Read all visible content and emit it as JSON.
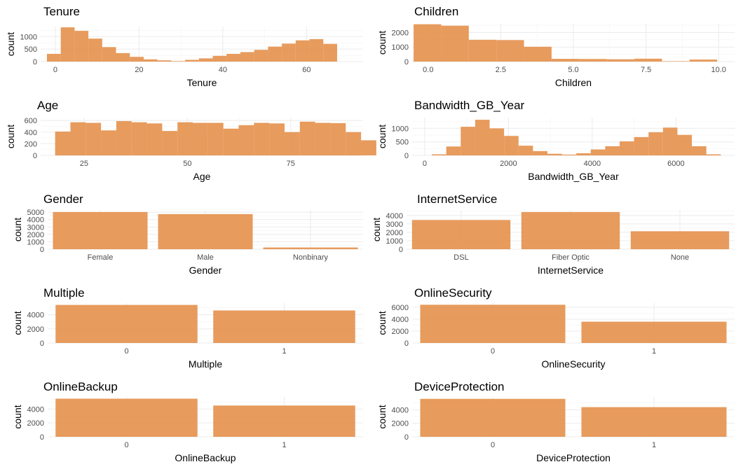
{
  "chart_data": [
    {
      "id": "tenure",
      "type": "bar",
      "histogram": true,
      "title": "Tenure",
      "xlabel": "Tenure",
      "ylabel": "count",
      "xlim": [
        -3.5,
        73.5
      ],
      "ylim": [
        0,
        1400
      ],
      "xticks": [
        0,
        20,
        40,
        60
      ],
      "xtick_labels": [
        "0",
        "20",
        "40",
        "60"
      ],
      "yticks": [
        0,
        500,
        1000
      ],
      "ytick_labels": [
        "0",
        "500",
        "1000"
      ],
      "bin_start": -2,
      "bin_width": 3.3,
      "values": [
        310,
        1370,
        1230,
        920,
        580,
        340,
        190,
        90,
        50,
        20,
        70,
        130,
        230,
        310,
        380,
        470,
        600,
        720,
        850,
        900,
        710
      ]
    },
    {
      "id": "children",
      "type": "bar",
      "histogram": true,
      "title": "Children",
      "xlabel": "Children",
      "ylabel": "count",
      "xlim": [
        -0.55,
        10.55
      ],
      "ylim": [
        0,
        2600
      ],
      "xticks": [
        0,
        2.5,
        5,
        7.5,
        10
      ],
      "xtick_labels": [
        "0.0",
        "2.5",
        "5.0",
        "7.5",
        "10.0"
      ],
      "yticks": [
        0,
        1000,
        2000
      ],
      "ytick_labels": [
        "0",
        "1000",
        "2000"
      ],
      "bin_start": -0.5,
      "bin_width": 0.95,
      "values": [
        2570,
        2470,
        1500,
        1480,
        1020,
        190,
        180,
        160,
        200,
        30,
        140
      ]
    },
    {
      "id": "age",
      "type": "bar",
      "histogram": true,
      "title": "Age",
      "xlabel": "Age",
      "ylabel": "count",
      "xlim": [
        14.5,
        92.5
      ],
      "ylim": [
        0,
        650
      ],
      "xticks": [
        25,
        50,
        75
      ],
      "xtick_labels": [
        "25",
        "50",
        "75"
      ],
      "yticks": [
        0,
        200,
        400,
        600
      ],
      "ytick_labels": [
        "0",
        "200",
        "400",
        "600"
      ],
      "bin_start": 18,
      "bin_width": 3.7,
      "values": [
        410,
        570,
        560,
        430,
        590,
        570,
        550,
        420,
        570,
        560,
        560,
        460,
        520,
        560,
        550,
        400,
        580,
        560,
        555,
        400,
        260
      ]
    },
    {
      "id": "bandwidth",
      "type": "bar",
      "histogram": true,
      "title": "Bandwidth_GB_Year",
      "xlabel": "Bandwidth_GB_Year",
      "ylabel": "count",
      "xlim": [
        -300,
        7400
      ],
      "ylim": [
        0,
        1400
      ],
      "xticks": [
        0,
        2000,
        4000,
        6000
      ],
      "xtick_labels": [
        "0",
        "2000",
        "4000",
        "6000"
      ],
      "yticks": [
        0,
        500,
        1000
      ],
      "ytick_labels": [
        "0",
        "500",
        "1000"
      ],
      "bin_start": 170,
      "bin_width": 345,
      "values": [
        40,
        330,
        1060,
        1320,
        1000,
        720,
        360,
        160,
        60,
        30,
        80,
        220,
        340,
        520,
        680,
        860,
        1030,
        760,
        340,
        40
      ]
    },
    {
      "id": "gender",
      "type": "bar",
      "title": "Gender",
      "xlabel": "Gender",
      "ylabel": "count",
      "categories": [
        "Female",
        "Male",
        "Nonbinary"
      ],
      "values": [
        5025,
        4744,
        231
      ],
      "ylim": [
        0,
        5300
      ],
      "yticks": [
        0,
        1000,
        2000,
        3000,
        4000,
        5000
      ],
      "ytick_labels": [
        "0",
        "1000",
        "2000",
        "3000",
        "4000",
        "5000"
      ]
    },
    {
      "id": "internet",
      "type": "bar",
      "title": "InternetService",
      "xlabel": "InternetService",
      "ylabel": "count",
      "categories": [
        "DSL",
        "Fiber Optic",
        "None"
      ],
      "values": [
        3463,
        4408,
        2129
      ],
      "ylim": [
        0,
        4650
      ],
      "yticks": [
        0,
        1000,
        2000,
        3000,
        4000
      ],
      "ytick_labels": [
        "0",
        "1000",
        "2000",
        "3000",
        "4000"
      ]
    },
    {
      "id": "multiple",
      "type": "bar",
      "title": "Multiple",
      "xlabel": "Multiple",
      "ylabel": "count",
      "categories": [
        "0",
        "1"
      ],
      "values": [
        5392,
        4608
      ],
      "ylim": [
        0,
        5650
      ],
      "yticks": [
        0,
        2000,
        4000
      ],
      "ytick_labels": [
        "0",
        "2000",
        "4000"
      ]
    },
    {
      "id": "onlinesecurity",
      "type": "bar",
      "title": "OnlineSecurity",
      "xlabel": "OnlineSecurity",
      "ylabel": "count",
      "categories": [
        "0",
        "1"
      ],
      "values": [
        6424,
        3576
      ],
      "ylim": [
        0,
        6700
      ],
      "yticks": [
        0,
        2000,
        4000,
        6000
      ],
      "ytick_labels": [
        "0",
        "2000",
        "4000",
        "6000"
      ]
    },
    {
      "id": "onlinebackup",
      "type": "bar",
      "title": "OnlineBackup",
      "xlabel": "OnlineBackup",
      "ylabel": "count",
      "categories": [
        "0",
        "1"
      ],
      "values": [
        5494,
        4506
      ],
      "ylim": [
        0,
        5750
      ],
      "yticks": [
        0,
        2000,
        4000
      ],
      "ytick_labels": [
        "0",
        "2000",
        "4000"
      ]
    },
    {
      "id": "deviceprotection",
      "type": "bar",
      "title": "DeviceProtection",
      "xlabel": "DeviceProtection",
      "ylabel": "count",
      "categories": [
        "0",
        "1"
      ],
      "values": [
        5614,
        4386
      ],
      "ylim": [
        0,
        5900
      ],
      "yticks": [
        0,
        2000,
        4000
      ],
      "ytick_labels": [
        "0",
        "2000",
        "4000"
      ]
    }
  ]
}
